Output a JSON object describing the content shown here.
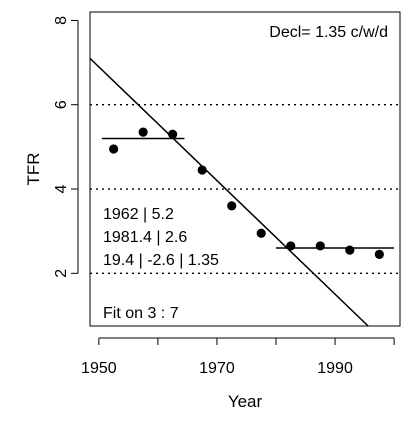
{
  "chart_data": {
    "type": "scatter",
    "xlabel": "Year",
    "ylabel": "TFR",
    "xlim": [
      1948.5,
      2001
    ],
    "ylim": [
      0.75,
      8.2
    ],
    "x_ticks": [
      1950,
      1970,
      1990
    ],
    "x_minor_ticks": [
      1960,
      1980,
      2000
    ],
    "y_ticks": [
      2,
      4,
      6,
      8
    ],
    "gridlines_y": [
      2,
      4,
      6
    ],
    "grid_style": "dotted",
    "points": [
      {
        "x": 1952.5,
        "y": 4.95
      },
      {
        "x": 1957.5,
        "y": 5.35
      },
      {
        "x": 1962.5,
        "y": 5.3
      },
      {
        "x": 1967.5,
        "y": 4.45
      },
      {
        "x": 1972.5,
        "y": 3.6
      },
      {
        "x": 1977.5,
        "y": 2.95
      },
      {
        "x": 1982.5,
        "y": 2.65
      },
      {
        "x": 1987.5,
        "y": 2.65
      },
      {
        "x": 1992.5,
        "y": 2.55
      },
      {
        "x": 1997.5,
        "y": 2.45
      }
    ],
    "fit_lines": [
      {
        "name": "pre-decline level",
        "x": [
          1950.5,
          1964.5
        ],
        "y": [
          5.2,
          5.2
        ]
      },
      {
        "name": "decline",
        "x": [
          1948.5,
          1995.6
        ],
        "y": [
          7.1,
          0.75
        ]
      },
      {
        "name": "post-decline level",
        "x": [
          1980,
          2000
        ],
        "y": [
          2.6,
          2.6
        ]
      }
    ],
    "annotations": {
      "decl": "Decl= 1.35  c/w/d",
      "line1": "1962 | 5.2",
      "line2": "1981.4 | 2.6",
      "line3": "19.4 | -2.6 | 1.35",
      "fit": "Fit on  3 : 7"
    }
  }
}
